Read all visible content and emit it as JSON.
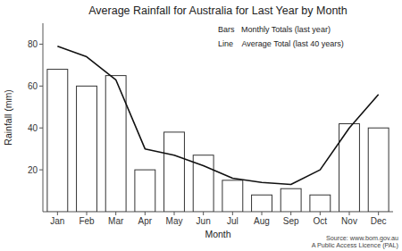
{
  "chart_data": {
    "type": "bar",
    "title": "Average Rainfall for Australia for Last Year by Month",
    "x_label": "Month",
    "y_label": "Rainfall (mm)",
    "categories": [
      "Jan",
      "Feb",
      "Mar",
      "Apr",
      "May",
      "Jun",
      "Jul",
      "Aug",
      "Sep",
      "Oct",
      "Nov",
      "Dec"
    ],
    "series": [
      {
        "name": "Bars   Monthly Totals (last year)",
        "type": "bar",
        "color": "white",
        "values": [
          68,
          60,
          65,
          20,
          38,
          27,
          15,
          8,
          11,
          8,
          42,
          40
        ]
      },
      {
        "name": "Line    Average Total (last 40 years)",
        "type": "line",
        "color": "#111111",
        "values": [
          79,
          74,
          63,
          30,
          27,
          22,
          16,
          14,
          13,
          20,
          40,
          56
        ]
      }
    ],
    "ylim": [
      0,
      90
    ],
    "yticks": [
      20,
      40,
      60,
      80
    ],
    "grid": false,
    "legend": "upper right",
    "annotations": [
      "Source: www.bom.gov.au",
      "A Public Access Licence (PAL)"
    ]
  }
}
